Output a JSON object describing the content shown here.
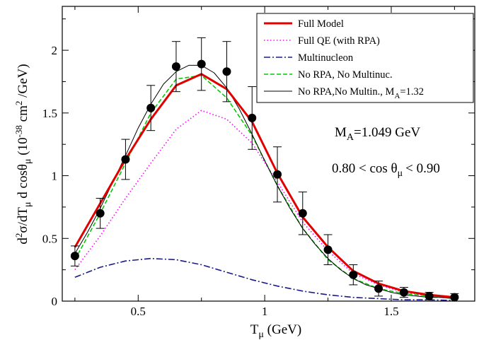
{
  "chart_data": {
    "type": "line",
    "xlabel_main": "T",
    "xlabel_sub": "μ",
    "xlabel_unit": " (GeV)",
    "ylabel_parts": [
      "d",
      "2",
      "σ/dT",
      "μ",
      " d cosθ",
      "μ",
      " (10",
      "-38",
      " cm",
      "2",
      " /GeV)"
    ],
    "xlim": [
      0.2,
      1.83
    ],
    "ylim": [
      0,
      2.35
    ],
    "xticks": [
      0.5,
      1,
      1.5
    ],
    "xtick_labels": [
      "0.5",
      "1",
      "1.5"
    ],
    "yticks": [
      0,
      0.5,
      1,
      1.5,
      2
    ],
    "ytick_labels": [
      "0",
      "0.5",
      "1",
      "1.5",
      "2"
    ],
    "grid": false,
    "legend_placement": "top-right",
    "annotations": [
      {
        "parts": [
          "M",
          "A",
          "=1.049 GeV"
        ]
      },
      {
        "parts": [
          "0.80 < cos θ",
          "μ",
          "< 0.90"
        ]
      }
    ],
    "series": [
      {
        "name": "Full Model",
        "legend_parts": [
          "Full Model"
        ],
        "color": "#e00000",
        "style": "solid-thick",
        "x": [
          0.25,
          0.35,
          0.45,
          0.55,
          0.65,
          0.75,
          0.85,
          0.95,
          1.05,
          1.15,
          1.25,
          1.35,
          1.45,
          1.55,
          1.65,
          1.75
        ],
        "y": [
          0.43,
          0.78,
          1.13,
          1.45,
          1.72,
          1.81,
          1.69,
          1.43,
          1.02,
          0.67,
          0.43,
          0.24,
          0.14,
          0.08,
          0.05,
          0.03
        ]
      },
      {
        "name": "Full QE (with RPA)",
        "legend_parts": [
          "Full QE (with RPA)"
        ],
        "color": "#ff00ff",
        "style": "dotted",
        "x": [
          0.25,
          0.35,
          0.45,
          0.55,
          0.65,
          0.75,
          0.85,
          0.95,
          1.05,
          1.15,
          1.25,
          1.35,
          1.45,
          1.55,
          1.65,
          1.75
        ],
        "y": [
          0.25,
          0.52,
          0.82,
          1.1,
          1.37,
          1.52,
          1.45,
          1.26,
          0.95,
          0.63,
          0.4,
          0.22,
          0.13,
          0.07,
          0.04,
          0.03
        ]
      },
      {
        "name": "Multinucleon",
        "legend_parts": [
          "Multinucleon"
        ],
        "color": "#1a1a8c",
        "style": "dash-dot",
        "x": [
          0.25,
          0.35,
          0.45,
          0.55,
          0.65,
          0.75,
          0.85,
          0.95,
          1.05,
          1.15,
          1.25,
          1.35,
          1.45,
          1.55,
          1.65,
          1.75
        ],
        "y": [
          0.19,
          0.27,
          0.32,
          0.34,
          0.33,
          0.29,
          0.23,
          0.17,
          0.12,
          0.08,
          0.05,
          0.03,
          0.02,
          0.01,
          0.01,
          0.005
        ]
      },
      {
        "name": "No RPA, No Multinuc.",
        "legend_parts": [
          "No RPA, No Multinuc."
        ],
        "color": "#00cc00",
        "style": "dashed",
        "x": [
          0.25,
          0.35,
          0.45,
          0.55,
          0.65,
          0.75,
          0.85,
          0.95,
          1.05,
          1.15,
          1.25,
          1.35,
          1.45,
          1.55,
          1.65,
          1.75
        ],
        "y": [
          0.33,
          0.7,
          1.1,
          1.5,
          1.77,
          1.8,
          1.62,
          1.32,
          0.92,
          0.58,
          0.33,
          0.18,
          0.1,
          0.06,
          0.04,
          0.02
        ]
      },
      {
        "name": "No RPA,No Multin., M_A=1.32",
        "legend_parts": [
          "No RPA,No Multin., M",
          "A",
          "=1.32"
        ],
        "color": "#000000",
        "style": "solid-thin",
        "x": [
          0.25,
          0.3,
          0.35,
          0.4,
          0.45,
          0.5,
          0.55,
          0.6,
          0.65,
          0.7,
          0.75,
          0.8,
          0.85,
          0.9,
          0.95,
          1.0,
          1.05,
          1.1,
          1.15,
          1.2,
          1.25,
          1.3,
          1.35,
          1.4,
          1.45,
          1.5,
          1.55,
          1.6,
          1.65,
          1.7,
          1.75
        ],
        "y": [
          0.38,
          0.55,
          0.74,
          0.95,
          1.16,
          1.38,
          1.57,
          1.73,
          1.83,
          1.88,
          1.88,
          1.82,
          1.7,
          1.53,
          1.33,
          1.12,
          0.92,
          0.74,
          0.58,
          0.45,
          0.34,
          0.25,
          0.18,
          0.13,
          0.1,
          0.07,
          0.05,
          0.04,
          0.03,
          0.03,
          0.02
        ]
      }
    ],
    "data_points": {
      "x": [
        0.25,
        0.35,
        0.45,
        0.55,
        0.65,
        0.75,
        0.85,
        0.95,
        1.05,
        1.15,
        1.25,
        1.35,
        1.45,
        1.55,
        1.65,
        1.75
      ],
      "y": [
        0.36,
        0.7,
        1.13,
        1.54,
        1.87,
        1.89,
        1.83,
        1.46,
        1.01,
        0.7,
        0.41,
        0.21,
        0.1,
        0.07,
        0.04,
        0.03
      ],
      "err": [
        0.08,
        0.12,
        0.16,
        0.18,
        0.2,
        0.21,
        0.24,
        0.25,
        0.22,
        0.17,
        0.12,
        0.08,
        0.06,
        0.04,
        0.03,
        0.03
      ],
      "color": "#000000"
    }
  }
}
